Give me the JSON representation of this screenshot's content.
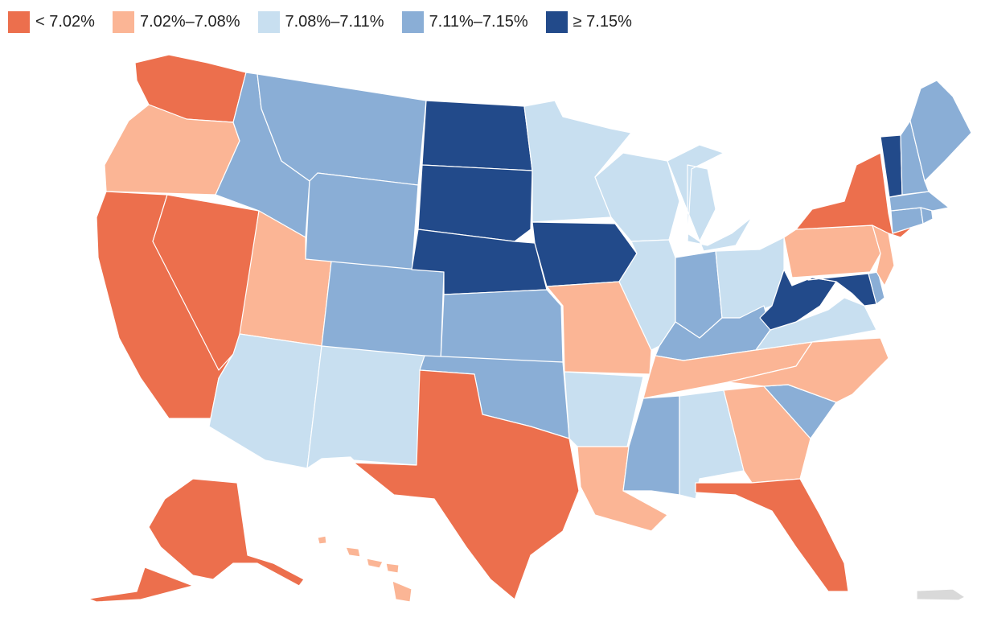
{
  "legend": {
    "items": [
      {
        "label": "< 7.02%",
        "color": "#ec6f4d"
      },
      {
        "label": "7.02%–7.08%",
        "color": "#fbb595"
      },
      {
        "label": "7.08%–7.11%",
        "color": "#c8dff0"
      },
      {
        "label": "7.11%–7.15%",
        "color": "#8aaed6"
      },
      {
        "label": "≥ 7.15%",
        "color": "#224a8a"
      }
    ]
  },
  "no_data_color": "#d9d9d9",
  "map": {
    "states": [
      {
        "code": "WA",
        "bin": 0
      },
      {
        "code": "OR",
        "bin": 1
      },
      {
        "code": "CA",
        "bin": 0
      },
      {
        "code": "NV",
        "bin": 0
      },
      {
        "code": "ID",
        "bin": 3
      },
      {
        "code": "MT",
        "bin": 3
      },
      {
        "code": "WY",
        "bin": 3
      },
      {
        "code": "UT",
        "bin": 1
      },
      {
        "code": "AZ",
        "bin": 2
      },
      {
        "code": "CO",
        "bin": 3
      },
      {
        "code": "NM",
        "bin": 2
      },
      {
        "code": "ND",
        "bin": 4
      },
      {
        "code": "SD",
        "bin": 4
      },
      {
        "code": "NE",
        "bin": 4
      },
      {
        "code": "KS",
        "bin": 3
      },
      {
        "code": "OK",
        "bin": 3
      },
      {
        "code": "TX",
        "bin": 0
      },
      {
        "code": "MN",
        "bin": 2
      },
      {
        "code": "IA",
        "bin": 4
      },
      {
        "code": "MO",
        "bin": 1
      },
      {
        "code": "AR",
        "bin": 2
      },
      {
        "code": "LA",
        "bin": 1
      },
      {
        "code": "WI",
        "bin": 2
      },
      {
        "code": "IL",
        "bin": 2
      },
      {
        "code": "MI",
        "bin": 2
      },
      {
        "code": "IN",
        "bin": 3
      },
      {
        "code": "OH",
        "bin": 2
      },
      {
        "code": "KY",
        "bin": 3
      },
      {
        "code": "TN",
        "bin": 1
      },
      {
        "code": "MS",
        "bin": 3
      },
      {
        "code": "AL",
        "bin": 2
      },
      {
        "code": "GA",
        "bin": 1
      },
      {
        "code": "FL",
        "bin": 0
      },
      {
        "code": "SC",
        "bin": 3
      },
      {
        "code": "NC",
        "bin": 1
      },
      {
        "code": "VA",
        "bin": 2
      },
      {
        "code": "WV",
        "bin": 4
      },
      {
        "code": "MD",
        "bin": 4
      },
      {
        "code": "DE",
        "bin": 3
      },
      {
        "code": "PA",
        "bin": 1
      },
      {
        "code": "NJ",
        "bin": 1
      },
      {
        "code": "NY",
        "bin": 0
      },
      {
        "code": "CT",
        "bin": 3
      },
      {
        "code": "RI",
        "bin": 3
      },
      {
        "code": "MA",
        "bin": 3
      },
      {
        "code": "VT",
        "bin": 4
      },
      {
        "code": "NH",
        "bin": 3
      },
      {
        "code": "ME",
        "bin": 3
      },
      {
        "code": "AK",
        "bin": 0
      },
      {
        "code": "HI",
        "bin": 1
      },
      {
        "code": "PR",
        "bin": null
      }
    ]
  }
}
